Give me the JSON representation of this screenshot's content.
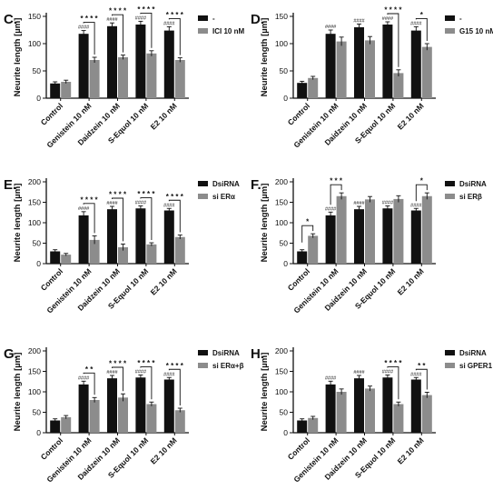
{
  "chart_data": [
    {
      "type": "bar",
      "panel": "C.",
      "ylabel": "Neurite length [µm]",
      "ylim": [
        0,
        150
      ],
      "yticks": [
        0,
        50,
        100,
        150
      ],
      "categories": [
        "Control",
        "Genistein 10 nM",
        "Daidzein 10 nM",
        "S-Equol 10 nM",
        "E2 10 nM"
      ],
      "series": [
        {
          "name": "-",
          "color": "#111111",
          "values": [
            27,
            118,
            132,
            135,
            124
          ],
          "errors": [
            3,
            6,
            6,
            6,
            7
          ]
        },
        {
          "name": "ICI 10 nM",
          "color": "#8c8c8c",
          "values": [
            30,
            70,
            75,
            82,
            70
          ],
          "errors": [
            3,
            5,
            4,
            5,
            4
          ]
        }
      ],
      "hash_marks": [
        "",
        "####",
        "####",
        "####",
        "####"
      ],
      "significance": [
        "",
        "* * * *",
        "* * * *",
        "* * * *",
        "* * * *"
      ],
      "legend_position": "top-right"
    },
    {
      "type": "bar",
      "panel": "D.",
      "ylabel": "Neurite length [µm]",
      "ylim": [
        0,
        150
      ],
      "yticks": [
        0,
        50,
        100,
        150
      ],
      "categories": [
        "Control",
        "Genistein 10 nM",
        "Daidzein 10 nM",
        "S-Equol 10 nM",
        "E2 10 nM"
      ],
      "series": [
        {
          "name": "-",
          "color": "#111111",
          "values": [
            28,
            118,
            130,
            135,
            124
          ],
          "errors": [
            3,
            7,
            6,
            5,
            7
          ]
        },
        {
          "name": "G15 10 nM",
          "color": "#8c8c8c",
          "values": [
            37,
            104,
            106,
            46,
            94
          ],
          "errors": [
            3,
            8,
            7,
            6,
            6
          ]
        }
      ],
      "hash_marks": [
        "",
        "####",
        "####",
        "####",
        "####"
      ],
      "significance": [
        "",
        "",
        "",
        "* * * *",
        "*"
      ],
      "legend_position": "top-right"
    },
    {
      "type": "bar",
      "panel": "E.",
      "ylabel": "Neurite length [µm]",
      "ylim": [
        0,
        200
      ],
      "yticks": [
        0,
        50,
        100,
        150,
        200
      ],
      "categories": [
        "Control",
        "Genistein 10 nM",
        "Daidzein 10 nM",
        "S-Equol 10 nM",
        "E2 10 nM"
      ],
      "series": [
        {
          "name": "DsiRNA",
          "color": "#111111",
          "values": [
            30,
            118,
            133,
            135,
            130
          ],
          "errors": [
            4,
            9,
            7,
            6,
            5
          ]
        },
        {
          "name": "si ERα",
          "color": "#8c8c8c",
          "values": [
            22,
            58,
            40,
            47,
            65
          ],
          "errors": [
            3,
            10,
            8,
            4,
            5
          ]
        }
      ],
      "hash_marks": [
        "",
        "####",
        "####",
        "####",
        "####"
      ],
      "significance": [
        "",
        "* * * *",
        "* * * *",
        "* * * *",
        "* * * *"
      ],
      "legend_position": "top-right"
    },
    {
      "type": "bar",
      "panel": "F.",
      "ylabel": "Neurite length [µm]",
      "ylim": [
        0,
        200
      ],
      "yticks": [
        0,
        50,
        100,
        150,
        200
      ],
      "categories": [
        "Control",
        "Genistein 10 nM",
        "Daidzein 10 nM",
        "S-Equol 10 nM",
        "E2 10 nM"
      ],
      "series": [
        {
          "name": "DsiRNA",
          "color": "#111111",
          "values": [
            30,
            118,
            133,
            135,
            130
          ],
          "errors": [
            4,
            8,
            7,
            6,
            5
          ]
        },
        {
          "name": "si ERβ",
          "color": "#8c8c8c",
          "values": [
            68,
            165,
            157,
            158,
            165
          ],
          "errors": [
            5,
            8,
            7,
            8,
            8
          ]
        }
      ],
      "hash_marks": [
        "",
        "####",
        "####",
        "####",
        "####"
      ],
      "significance": [
        "*",
        "* * *",
        "",
        "",
        "*"
      ],
      "legend_position": "top-right"
    },
    {
      "type": "bar",
      "panel": "G.",
      "ylabel": "Neurite length [µm]",
      "ylim": [
        0,
        200
      ],
      "yticks": [
        0,
        50,
        100,
        150,
        200
      ],
      "categories": [
        "Control",
        "Genistein 10 nM",
        "Daidzein 10 nM",
        "S-Equol 10 nM",
        "E2 10 nM"
      ],
      "series": [
        {
          "name": "DsiRNA",
          "color": "#111111",
          "values": [
            30,
            118,
            133,
            135,
            130
          ],
          "errors": [
            4,
            8,
            7,
            6,
            5
          ]
        },
        {
          "name": "si ERα+β",
          "color": "#8c8c8c",
          "values": [
            38,
            80,
            86,
            70,
            55
          ],
          "errors": [
            4,
            6,
            9,
            5,
            5
          ]
        }
      ],
      "hash_marks": [
        "",
        "####",
        "####",
        "####",
        "####"
      ],
      "significance": [
        "",
        "* *",
        "* * * *",
        "* * * *",
        "* * * *"
      ],
      "legend_position": "top-right"
    },
    {
      "type": "bar",
      "panel": "H.",
      "ylabel": "Neurite length [µm]",
      "ylim": [
        0,
        200
      ],
      "yticks": [
        0,
        50,
        100,
        150,
        200
      ],
      "categories": [
        "Control",
        "Genistein 10 nM",
        "Daidzein 10 nM",
        "S-Equol 10 nM",
        "E2 10 nM"
      ],
      "series": [
        {
          "name": "DsiRNA",
          "color": "#111111",
          "values": [
            30,
            118,
            133,
            135,
            130
          ],
          "errors": [
            4,
            8,
            7,
            6,
            5
          ]
        },
        {
          "name": "si GPER1",
          "color": "#8c8c8c",
          "values": [
            36,
            100,
            108,
            70,
            92
          ],
          "errors": [
            4,
            7,
            6,
            5,
            7
          ]
        }
      ],
      "hash_marks": [
        "",
        "####",
        "####",
        "####",
        "####"
      ],
      "significance": [
        "",
        "",
        "",
        "* * * *",
        "* *"
      ],
      "legend_position": "top-right"
    }
  ]
}
